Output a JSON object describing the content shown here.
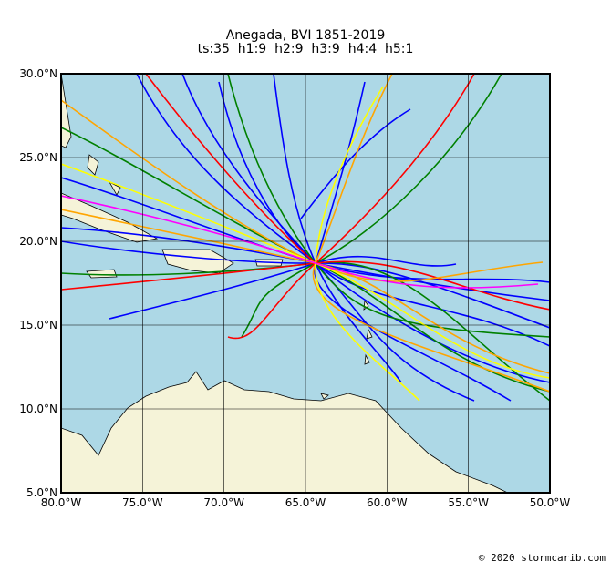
{
  "title": "Anegada, BVI 1851-2019",
  "subtitle": "ts:35  h1:9  h2:9  h3:9  h4:4  h5:1",
  "map": {
    "xlim": [
      -80,
      -50
    ],
    "ylim": [
      5,
      30
    ],
    "xticks": [
      {
        "value": -80,
        "label": "80.0°W"
      },
      {
        "value": -75,
        "label": "75.0°W"
      },
      {
        "value": -70,
        "label": "70.0°W"
      },
      {
        "value": -65,
        "label": "65.0°W"
      },
      {
        "value": -60,
        "label": "60.0°W"
      },
      {
        "value": -55,
        "label": "55.0°W"
      },
      {
        "value": -50,
        "label": "50.0°W"
      }
    ],
    "yticks": [
      {
        "value": 5,
        "label": "5.0°N"
      },
      {
        "value": 10,
        "label": "10.0°N"
      },
      {
        "value": 15,
        "label": "15.0°N"
      },
      {
        "value": 20,
        "label": "20.0°N"
      },
      {
        "value": 25,
        "label": "25.0°N"
      },
      {
        "value": 30,
        "label": "30.0°N"
      }
    ]
  },
  "footer": "© 2020 stormcarib.com"
}
